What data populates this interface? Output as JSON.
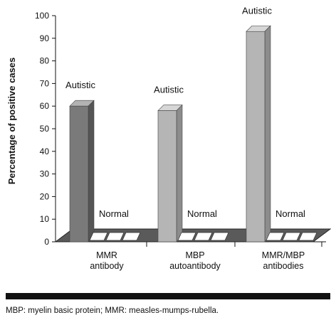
{
  "chart_data": {
    "type": "bar",
    "ylabel": "Percentage of positive cases",
    "ylim": [
      0,
      100
    ],
    "yticks": [
      0,
      10,
      20,
      30,
      40,
      50,
      60,
      70,
      80,
      90,
      100
    ],
    "categories": [
      "MMR\nantibody",
      "MBP\nautoantibody",
      "MMR/MBP\nantibodies"
    ],
    "series": [
      {
        "name": "Autistic",
        "values": [
          60,
          58,
          93
        ],
        "color": "#8a8a8a"
      },
      {
        "name": "Normal",
        "values": [
          0,
          0,
          0
        ],
        "color": "#ffffff"
      }
    ]
  },
  "footnote": "MBP: myelin basic protein; MMR: measles-mumps-rubella."
}
